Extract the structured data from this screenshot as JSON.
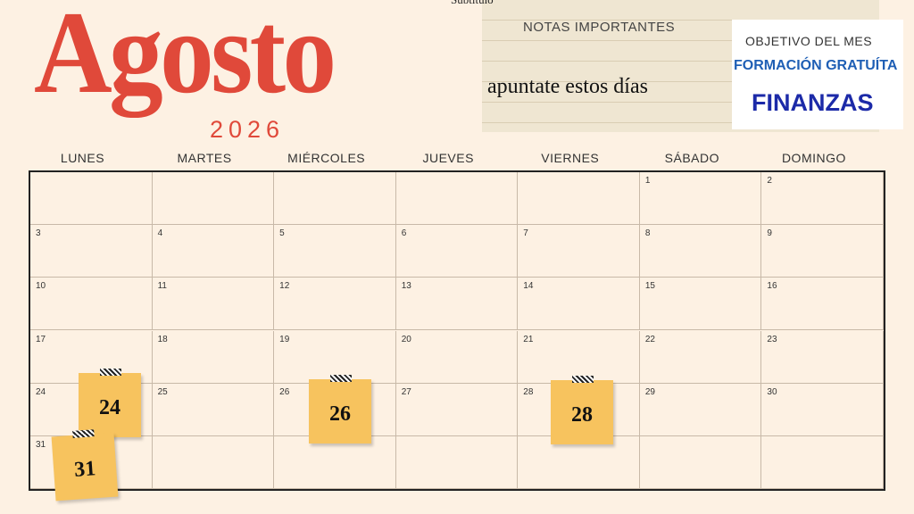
{
  "header": {
    "title": "Agosto",
    "year": "2026",
    "subtitle": "Subtítulo"
  },
  "notes": {
    "title": "NOTAS IMPORTANTES",
    "text": "apuntate estos días"
  },
  "goal": {
    "label": "OBJETIVO DEL MES",
    "line1": "FORMACIÓN GRATUÍTA",
    "line2": "FINANZAS"
  },
  "calendar": {
    "weekdays": [
      "LUNES",
      "MARTES",
      "MIÉRCOLES",
      "JUEVES",
      "VIERNES",
      "SÁBADO",
      "DOMINGO"
    ],
    "weeks": [
      [
        null,
        null,
        null,
        null,
        null,
        1,
        2
      ],
      [
        3,
        4,
        5,
        6,
        7,
        8,
        9
      ],
      [
        10,
        11,
        12,
        13,
        14,
        15,
        16
      ],
      [
        17,
        18,
        19,
        20,
        21,
        22,
        23
      ],
      [
        24,
        25,
        26,
        27,
        28,
        29,
        30
      ],
      [
        31,
        null,
        null,
        null,
        null,
        null,
        null
      ]
    ]
  },
  "stickies": [
    24,
    26,
    28,
    31
  ]
}
